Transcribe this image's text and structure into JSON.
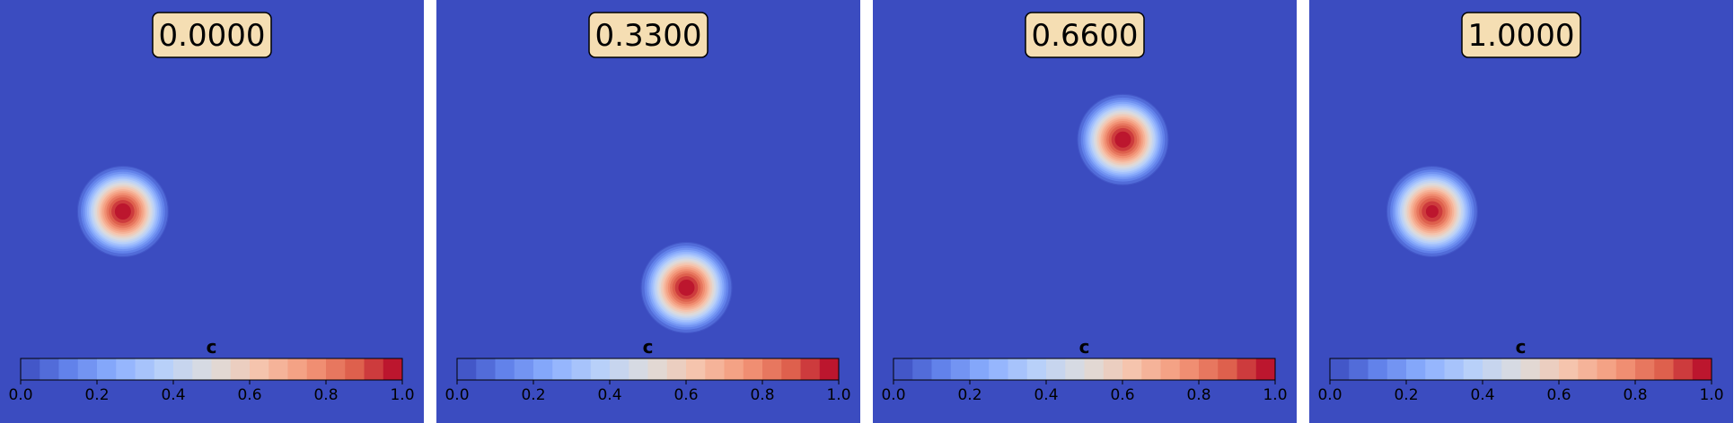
{
  "chart_data": [
    {
      "type": "heatmap",
      "title": "0.0000",
      "blob": {
        "center": [
          0.29,
          0.5
        ],
        "radius": 0.12,
        "peak": 1.0
      },
      "field_background": 0.0,
      "colorbar": {
        "label": "c",
        "range": [
          0.0,
          1.0
        ],
        "levels": 20,
        "ticks": [
          "0.0",
          "0.2",
          "0.4",
          "0.6",
          "0.8",
          "1.0"
        ]
      }
    },
    {
      "type": "heatmap",
      "title": "0.3300",
      "blob": {
        "center": [
          0.59,
          0.32
        ],
        "radius": 0.12,
        "peak": 1.0
      },
      "field_background": 0.0,
      "colorbar": {
        "label": "c",
        "range": [
          0.0,
          1.0
        ],
        "levels": 20,
        "ticks": [
          "0.0",
          "0.2",
          "0.4",
          "0.6",
          "0.8",
          "1.0"
        ]
      }
    },
    {
      "type": "heatmap",
      "title": "0.6600",
      "blob": {
        "center": [
          0.59,
          0.67
        ],
        "radius": 0.12,
        "peak": 1.0
      },
      "field_background": 0.0,
      "colorbar": {
        "label": "c",
        "range": [
          0.0,
          1.0
        ],
        "levels": 20,
        "ticks": [
          "0.0",
          "0.2",
          "0.4",
          "0.6",
          "0.8",
          "1.0"
        ]
      }
    },
    {
      "type": "heatmap",
      "title": "1.0000",
      "blob": {
        "center": [
          0.29,
          0.5
        ],
        "radius": 0.12,
        "peak": 0.98
      },
      "field_background": 0.0,
      "colorbar": {
        "label": "c",
        "range": [
          0.0,
          1.0
        ],
        "levels": 20,
        "ticks": [
          "0.0",
          "0.2",
          "0.4",
          "0.6",
          "0.8",
          "1.0"
        ]
      }
    }
  ],
  "colors": {
    "colormap": "coolwarm",
    "background_field": "#3b4cc0",
    "badge_fill": "#f5deb3",
    "badge_stroke": "#000000"
  }
}
